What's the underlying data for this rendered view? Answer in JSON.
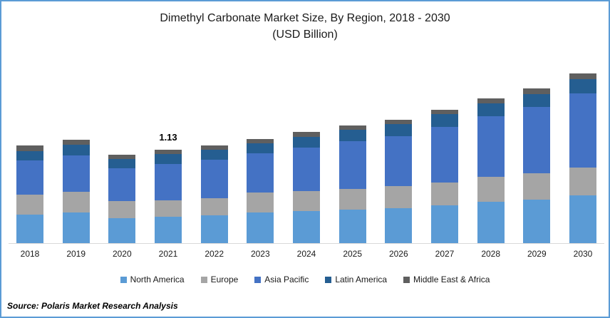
{
  "frame": {
    "border_color": "#5B9BD5",
    "background_color": "#FFFFFF"
  },
  "title": {
    "line1": "Dimethyl Carbonate Market Size, By Region, 2018 - 2030",
    "line2": "(USD Billion)"
  },
  "chart_data": {
    "type": "bar",
    "stacked": true,
    "unit": "USD Billion",
    "title": "Dimethyl Carbonate Market Size, By Region, 2018 - 2030 (USD Billion)",
    "categories": [
      "2018",
      "2019",
      "2020",
      "2021",
      "2022",
      "2023",
      "2024",
      "2025",
      "2026",
      "2027",
      "2028",
      "2029",
      "2030"
    ],
    "series": [
      {
        "name": "North America",
        "color": "#5B9BD5",
        "values": [
          0.35,
          0.37,
          0.3,
          0.32,
          0.34,
          0.37,
          0.39,
          0.41,
          0.43,
          0.46,
          0.5,
          0.53,
          0.58
        ]
      },
      {
        "name": "Europe",
        "color": "#A5A5A5",
        "values": [
          0.24,
          0.25,
          0.21,
          0.2,
          0.21,
          0.24,
          0.24,
          0.25,
          0.27,
          0.28,
          0.3,
          0.32,
          0.34
        ]
      },
      {
        "name": "Asia Pacific",
        "color": "#4472C4",
        "values": [
          0.42,
          0.44,
          0.4,
          0.44,
          0.47,
          0.48,
          0.53,
          0.58,
          0.61,
          0.68,
          0.74,
          0.81,
          0.9
        ]
      },
      {
        "name": "Latin America",
        "color": "#255E91",
        "values": [
          0.11,
          0.13,
          0.11,
          0.12,
          0.12,
          0.12,
          0.13,
          0.14,
          0.15,
          0.16,
          0.16,
          0.16,
          0.17
        ]
      },
      {
        "name": "Middle East & Africa",
        "color": "#5F5F5F",
        "values": [
          0.07,
          0.06,
          0.05,
          0.05,
          0.05,
          0.05,
          0.06,
          0.05,
          0.05,
          0.05,
          0.06,
          0.07,
          0.07
        ]
      }
    ],
    "totals": [
      1.19,
      1.25,
      1.07,
      1.13,
      1.19,
      1.26,
      1.35,
      1.43,
      1.51,
      1.63,
      1.76,
      1.89,
      2.06
    ],
    "data_labels": [
      {
        "category": "2021",
        "text": "1.13"
      }
    ],
    "legend_position": "bottom",
    "grid": false,
    "y_axis_visible": false,
    "xlabel": "",
    "ylabel": ""
  },
  "source": {
    "text": "Source: Polaris  Market Research Analysis"
  }
}
